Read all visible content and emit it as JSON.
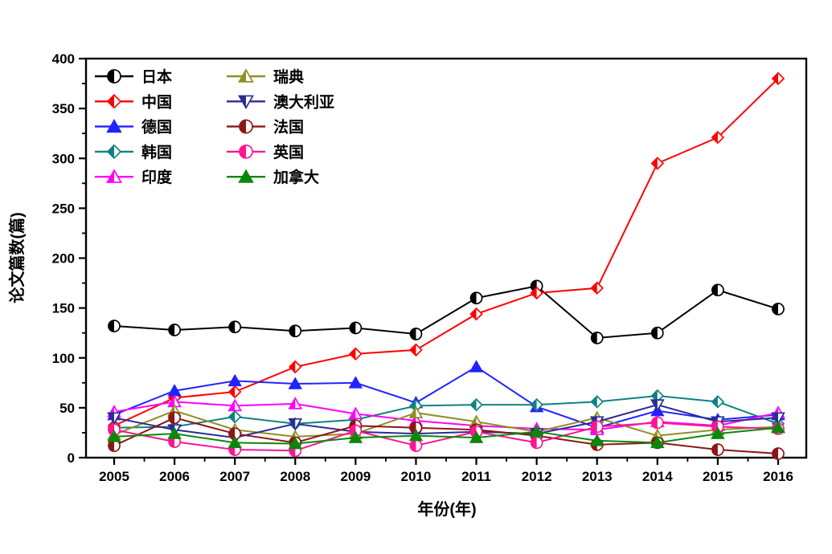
{
  "figure": {
    "background": "#ffffff",
    "frame_color": "#000000"
  },
  "chart_data": {
    "type": "line",
    "title": "",
    "xlabel": "年份(年)",
    "ylabel": "论文篇数(篇)",
    "x": [
      2005,
      2006,
      2007,
      2008,
      2009,
      2010,
      2011,
      2012,
      2013,
      2014,
      2015,
      2016
    ],
    "ylim": [
      0,
      400
    ],
    "yticks": [
      0,
      50,
      100,
      150,
      200,
      250,
      300,
      350,
      400
    ],
    "ytick_minor_step": 25,
    "grid": false,
    "legend_position": "inside-top-left-two-columns",
    "series": [
      {
        "name": "日本",
        "color": "#000000",
        "marker": "circle-half",
        "values": [
          132,
          128,
          131,
          127,
          130,
          124,
          160,
          172,
          120,
          125,
          168,
          149
        ]
      },
      {
        "name": "中国",
        "color": "#ff0000",
        "marker": "diamond-half",
        "values": [
          32,
          60,
          66,
          91,
          104,
          108,
          144,
          165,
          170,
          295,
          321,
          380
        ]
      },
      {
        "name": "德国",
        "color": "#2222ff",
        "marker": "triangle",
        "values": [
          43,
          67,
          77,
          74,
          75,
          55,
          91,
          51,
          30,
          47,
          38,
          43
        ]
      },
      {
        "name": "韩国",
        "color": "#0e8282",
        "marker": "diamond-half",
        "values": [
          30,
          31,
          41,
          34,
          38,
          52,
          53,
          53,
          56,
          62,
          56,
          34
        ]
      },
      {
        "name": "印度",
        "color": "#ff00ff",
        "marker": "triangle-half",
        "values": [
          46,
          56,
          52,
          54,
          44,
          37,
          32,
          29,
          28,
          36,
          32,
          45
        ]
      },
      {
        "name": "瑞典",
        "color": "#8f8f22",
        "marker": "triangle-half",
        "values": [
          23,
          47,
          28,
          21,
          24,
          45,
          36,
          26,
          40,
          22,
          28,
          31
        ]
      },
      {
        "name": "澳大利亚",
        "color": "#2b2b94",
        "marker": "triangle-down-half",
        "values": [
          40,
          28,
          20,
          34,
          26,
          24,
          26,
          24,
          36,
          53,
          36,
          40
        ]
      },
      {
        "name": "法国",
        "color": "#8c1616",
        "marker": "circle-half",
        "values": [
          12,
          40,
          24,
          15,
          32,
          30,
          28,
          22,
          13,
          15,
          8,
          4
        ]
      },
      {
        "name": "英国",
        "color": "#ff1493",
        "marker": "circle-half",
        "values": [
          28,
          16,
          8,
          7,
          27,
          12,
          26,
          15,
          31,
          35,
          31,
          29
        ]
      },
      {
        "name": "加拿大",
        "color": "#0c870c",
        "marker": "triangle",
        "values": [
          21,
          24,
          15,
          14,
          20,
          22,
          20,
          26,
          17,
          15,
          24,
          30
        ]
      }
    ]
  }
}
